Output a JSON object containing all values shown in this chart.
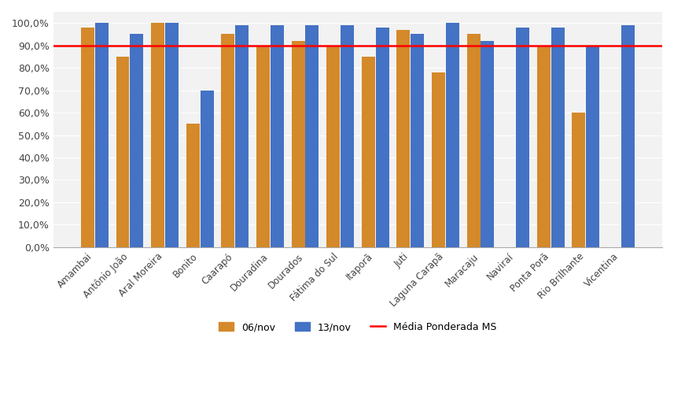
{
  "categories": [
    "Amambai",
    "Antônio João",
    "Aral Moreira",
    "Bonito",
    "Caarapó",
    "Douradina",
    "Dourados",
    "Fátima do Sul",
    "Itaporã",
    "Juti",
    "Laguna Carapã",
    "Maracaju",
    "Naviraí",
    "Ponta Porã",
    "Rio Brilhante",
    "Vicentina"
  ],
  "series_06nov": [
    0.98,
    0.85,
    1.0,
    0.55,
    0.95,
    0.9,
    0.92,
    0.9,
    0.85,
    0.97,
    0.78,
    0.95,
    null,
    0.9,
    0.6,
    null
  ],
  "series_13nov": [
    1.0,
    0.95,
    1.0,
    0.7,
    0.99,
    0.99,
    0.99,
    0.99,
    0.98,
    0.95,
    1.0,
    0.92,
    0.98,
    0.98,
    0.9,
    0.99
  ],
  "color_06nov": "#D4892A",
  "color_13nov": "#4472C4",
  "color_ref_line": "#FF0000",
  "ref_line_value": 0.9,
  "legend_06nov": "06/nov",
  "legend_13nov": "13/nov",
  "legend_ref": "Média Ponderada MS",
  "ylim": [
    0.0,
    1.05
  ],
  "yticks": [
    0.0,
    0.1,
    0.2,
    0.3,
    0.4,
    0.5,
    0.6,
    0.7,
    0.8,
    0.9,
    1.0
  ],
  "ytick_labels": [
    "0,0%",
    "10,0%",
    "20,0%",
    "30,0%",
    "40,0%",
    "50,0%",
    "60,0%",
    "70,0%",
    "80,0%",
    "90,0%",
    "100,0%"
  ],
  "background_color": "#FFFFFF",
  "plot_bg_color": "#F2F2F2",
  "grid_color": "#FFFFFF"
}
